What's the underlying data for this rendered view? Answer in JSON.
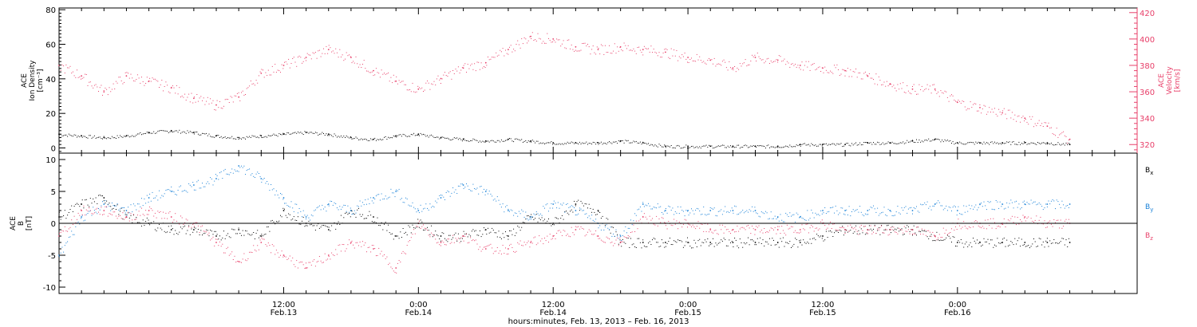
{
  "colors": {
    "black": "#000000",
    "pink": "#e8406a",
    "blue": "#1a82d8",
    "axis": "#000000"
  },
  "time_axis": {
    "tick_labels_time": [
      "12:00",
      "0:00",
      "12:00",
      "0:00",
      "12:00",
      "0:00"
    ],
    "tick_labels_date": [
      "Feb.13",
      "Feb.14",
      "Feb.14",
      "Feb.15",
      "Feb.15",
      "Feb.16"
    ],
    "title": "hours:minutes, Feb. 13, 2013 – Feb. 16, 2013"
  },
  "chart_data": [
    {
      "type": "scatter",
      "panel": "top",
      "left_axis": {
        "label_lines": [
          "ACE",
          "Ion Density",
          "[cm⁻³]"
        ],
        "range": [
          -3,
          81
        ],
        "ticks": [
          0,
          20,
          40,
          60,
          80
        ]
      },
      "right_axis": {
        "label_lines": [
          "ACE",
          "Velocity",
          "[km/s]"
        ],
        "range": [
          313.5,
          423.5
        ],
        "ticks": [
          320,
          340,
          360,
          380,
          400,
          420
        ],
        "color": "#e8406a"
      },
      "time_range_hours": [
        -8,
        88
      ],
      "series": [
        {
          "axis": "left",
          "color": "#000000",
          "x_hours": [
            -8,
            -6,
            -4,
            -2,
            0,
            2,
            4,
            6,
            8,
            10,
            12,
            14,
            16,
            18,
            20,
            22,
            24,
            26,
            28,
            30,
            32,
            34,
            36,
            38,
            40,
            42,
            44,
            46,
            48,
            50,
            52,
            54,
            56,
            58,
            60,
            62,
            64,
            66,
            68,
            70,
            72,
            74,
            76,
            78,
            80,
            82
          ],
          "y": [
            8,
            7,
            6,
            7,
            9,
            10,
            9,
            7,
            6,
            7,
            8,
            9,
            8,
            6,
            5,
            7,
            8,
            6,
            5,
            4,
            5,
            4,
            3,
            3,
            3,
            4,
            3,
            1,
            1,
            1,
            1,
            1,
            1,
            2,
            2,
            2,
            3,
            3,
            4,
            5,
            3,
            3,
            3,
            3,
            3,
            2
          ]
        },
        {
          "axis": "right",
          "color": "#e8406a",
          "x_hours": [
            -8,
            -6,
            -4,
            -2,
            0,
            2,
            4,
            6,
            8,
            10,
            12,
            14,
            16,
            18,
            20,
            22,
            24,
            26,
            28,
            30,
            32,
            34,
            36,
            38,
            40,
            42,
            44,
            46,
            48,
            50,
            52,
            54,
            56,
            58,
            60,
            62,
            64,
            66,
            68,
            70,
            72,
            74,
            76,
            78,
            80,
            82
          ],
          "y": [
            380,
            372,
            360,
            372,
            368,
            363,
            355,
            350,
            356,
            374,
            380,
            386,
            392,
            386,
            376,
            368,
            362,
            370,
            378,
            382,
            392,
            402,
            400,
            394,
            392,
            394,
            392,
            390,
            386,
            384,
            378,
            386,
            384,
            380,
            378,
            376,
            372,
            366,
            362,
            362,
            352,
            348,
            344,
            340,
            334,
            324
          ]
        }
      ]
    },
    {
      "type": "scatter",
      "panel": "bottom",
      "left_axis": {
        "label_lines": [
          "ACE",
          "B",
          "[nT]"
        ],
        "range": [
          -11,
          11
        ],
        "ticks": [
          -10,
          -5,
          0,
          5,
          10
        ]
      },
      "time_range_hours": [
        -8,
        88
      ],
      "zero_line": true,
      "legend_placement": "right",
      "series": [
        {
          "name": "B",
          "subscript": "x",
          "color": "#000000",
          "x_hours": [
            -8,
            -6,
            -4,
            -2,
            0,
            2,
            4,
            6,
            8,
            10,
            12,
            14,
            16,
            18,
            20,
            22,
            24,
            26,
            28,
            30,
            32,
            34,
            36,
            38,
            40,
            42,
            44,
            46,
            48,
            50,
            52,
            54,
            56,
            58,
            60,
            62,
            64,
            66,
            68,
            70,
            72,
            74,
            76,
            78,
            80,
            82
          ],
          "y": [
            1,
            3,
            4,
            1,
            0,
            -1,
            -1,
            -2,
            -1,
            -2,
            2,
            0,
            -1,
            2,
            1,
            -2,
            0,
            -2,
            -2,
            -1,
            -2,
            1,
            0,
            3,
            2,
            -3,
            -3,
            -3,
            -3,
            -3,
            -3,
            -3,
            -3,
            -3,
            -2,
            -1,
            -1,
            -1,
            -1,
            -2,
            -3,
            -3,
            -3,
            -3,
            -3,
            -3
          ]
        },
        {
          "name": "B",
          "subscript": "y",
          "color": "#1a82d8",
          "x_hours": [
            -8,
            -6,
            -4,
            -2,
            0,
            2,
            4,
            6,
            8,
            10,
            12,
            14,
            16,
            18,
            20,
            22,
            24,
            26,
            28,
            30,
            32,
            34,
            36,
            38,
            40,
            42,
            44,
            46,
            48,
            50,
            52,
            54,
            56,
            58,
            60,
            62,
            64,
            66,
            68,
            70,
            72,
            74,
            76,
            78,
            80,
            82
          ],
          "y": [
            -5,
            1,
            3,
            2,
            4,
            5,
            6,
            7,
            9,
            7,
            4,
            1,
            3,
            2,
            4,
            5,
            2,
            4,
            6,
            5,
            2,
            1,
            3,
            2,
            0,
            -2,
            3,
            2,
            2,
            2,
            2,
            2,
            1,
            1,
            2,
            2,
            2,
            2,
            2,
            3,
            2,
            3,
            3,
            3,
            3,
            3
          ]
        },
        {
          "name": "B",
          "subscript": "z",
          "color": "#e8406a",
          "x_hours": [
            -8,
            -6,
            -4,
            -2,
            0,
            2,
            4,
            6,
            8,
            10,
            12,
            14,
            16,
            18,
            20,
            22,
            24,
            26,
            28,
            30,
            32,
            34,
            36,
            38,
            40,
            42,
            44,
            46,
            48,
            50,
            52,
            54,
            56,
            58,
            60,
            62,
            64,
            66,
            68,
            70,
            72,
            74,
            76,
            78,
            80,
            82
          ],
          "y": [
            -2,
            2,
            2,
            1,
            2,
            1,
            0,
            -3,
            -6,
            -3,
            -5,
            -7,
            -5,
            -3,
            -4,
            -7,
            0,
            -3,
            -2,
            -4,
            -4,
            -3,
            -2,
            -1,
            -2,
            -3,
            1,
            0,
            0,
            -1,
            -1,
            -1,
            -1,
            -1,
            0,
            -1,
            -1,
            -1,
            -1,
            -2,
            0,
            0,
            0,
            1,
            0,
            0
          ]
        }
      ]
    }
  ]
}
